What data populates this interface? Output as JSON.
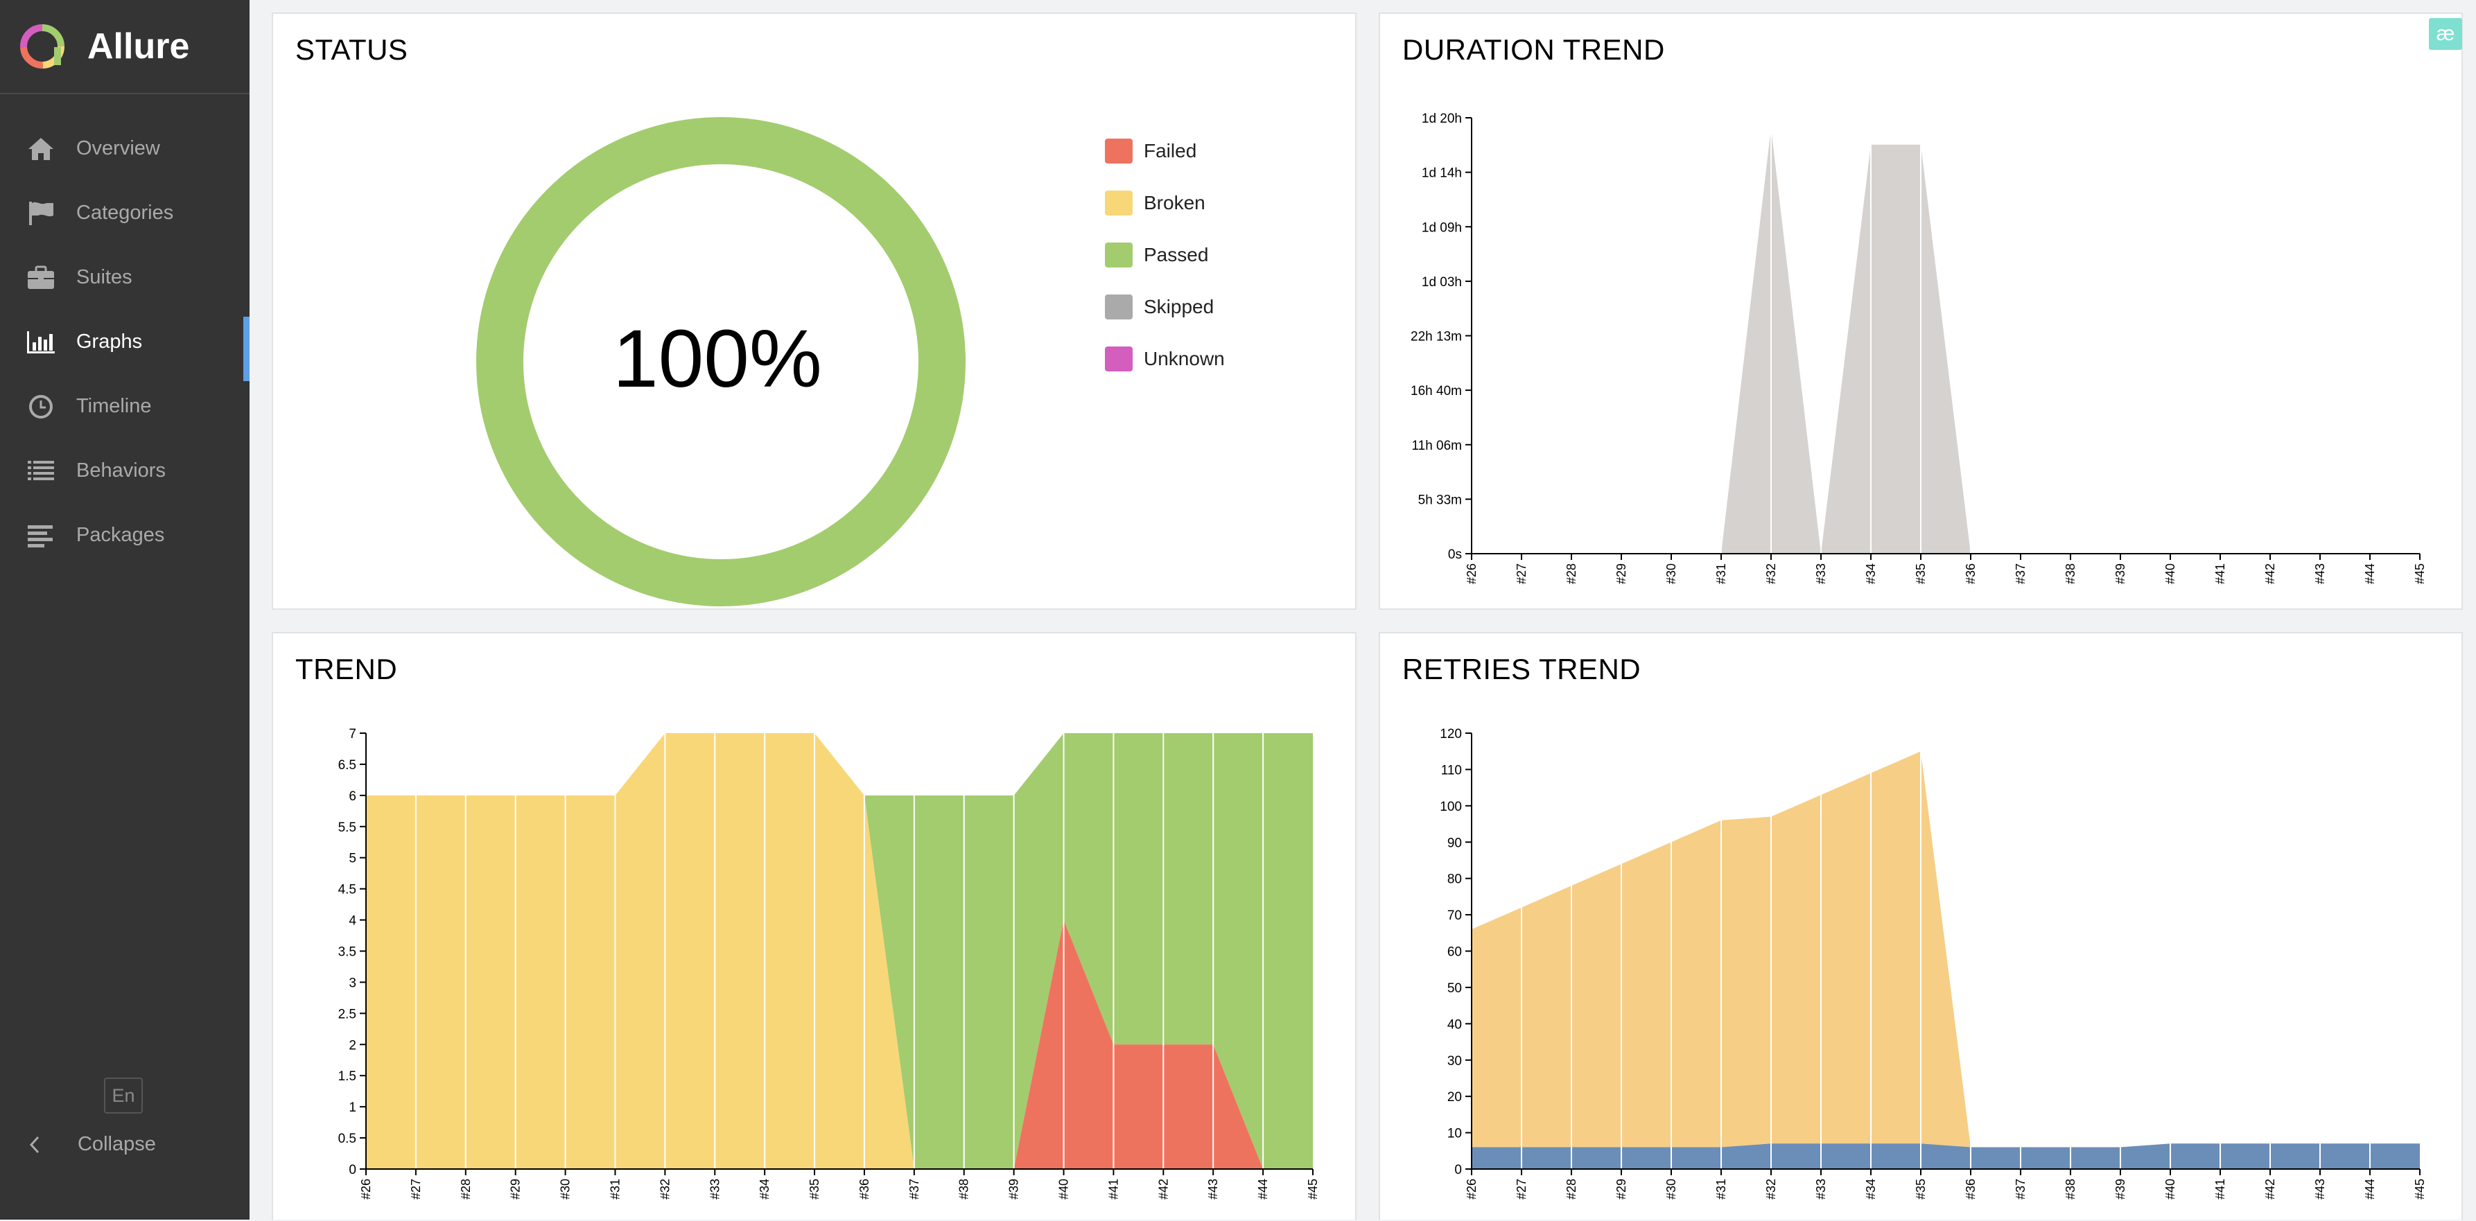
{
  "app": {
    "name": "Allure"
  },
  "sidebar": {
    "items": [
      {
        "label": "Overview",
        "icon": "home-icon"
      },
      {
        "label": "Categories",
        "icon": "flag-icon"
      },
      {
        "label": "Suites",
        "icon": "briefcase-icon"
      },
      {
        "label": "Graphs",
        "icon": "bar-chart-icon"
      },
      {
        "label": "Timeline",
        "icon": "clock-icon"
      },
      {
        "label": "Behaviors",
        "icon": "list-icon"
      },
      {
        "label": "Packages",
        "icon": "align-left-icon"
      }
    ],
    "active": "Graphs",
    "language": "En",
    "collapse_label": "Collapse"
  },
  "extension_badge": "æ",
  "colors": {
    "failed": "#ee735f",
    "broken": "#f8d778",
    "passed": "#a3cc6e",
    "skipped": "#aaaaaa",
    "unknown": "#d35ebe",
    "duration": "#d6d2cf",
    "retries_total": "#f7ce86",
    "retries_base": "#6b8eb9",
    "accent": "#5c9fe8"
  },
  "panels": {
    "status": {
      "title": "STATUS",
      "percent_label": "100%"
    },
    "duration": {
      "title": "DURATION TREND"
    },
    "trend": {
      "title": "TREND"
    },
    "retries": {
      "title": "RETRIES TREND"
    }
  },
  "chart_data": [
    {
      "id": "status",
      "type": "pie",
      "title": "STATUS",
      "center_label": "100%",
      "slices": [
        {
          "name": "Failed",
          "value": 0,
          "color": "#ee735f"
        },
        {
          "name": "Broken",
          "value": 0,
          "color": "#f8d778"
        },
        {
          "name": "Passed",
          "value": 100,
          "color": "#a3cc6e"
        },
        {
          "name": "Skipped",
          "value": 0,
          "color": "#aaaaaa"
        },
        {
          "name": "Unknown",
          "value": 0,
          "color": "#d35ebe"
        }
      ],
      "legend_position": "right"
    },
    {
      "id": "duration",
      "type": "area",
      "title": "DURATION TREND",
      "categories": [
        "#26",
        "#27",
        "#28",
        "#29",
        "#30",
        "#31",
        "#32",
        "#33",
        "#34",
        "#35",
        "#36",
        "#37",
        "#38",
        "#39",
        "#40",
        "#41",
        "#42",
        "#43",
        "#44",
        "#45"
      ],
      "y_tick_labels": [
        "0s",
        "5h 33m",
        "11h 06m",
        "16h 40m",
        "22h 13m",
        "1d 03h",
        "1d 09h",
        "1d 14h",
        "1d 20h"
      ],
      "ylim_hours": [
        0,
        44.44
      ],
      "series": [
        {
          "values_hours": [
            0,
            0,
            0,
            0,
            0,
            0,
            43.4,
            0,
            41.7,
            41.7,
            0,
            0,
            0,
            0,
            0,
            0,
            0,
            0,
            0,
            0
          ],
          "color": "#d6d2cf"
        }
      ]
    },
    {
      "id": "trend",
      "type": "area",
      "title": "TREND",
      "categories": [
        "#26",
        "#27",
        "#28",
        "#29",
        "#30",
        "#31",
        "#32",
        "#33",
        "#34",
        "#35",
        "#36",
        "#37",
        "#38",
        "#39",
        "#40",
        "#41",
        "#42",
        "#43",
        "#44",
        "#45"
      ],
      "y_ticks": [
        "0",
        "0.5",
        "1",
        "1.5",
        "2",
        "2.5",
        "3",
        "3.5",
        "4",
        "4.5",
        "5",
        "5.5",
        "6",
        "6.5",
        "7"
      ],
      "ylim": [
        0,
        7
      ],
      "stacked": true,
      "series": [
        {
          "name": "Failed",
          "color": "#ee735f",
          "values": [
            0,
            0,
            0,
            0,
            0,
            0,
            0,
            0,
            0,
            0,
            0,
            0,
            0,
            0,
            4,
            2,
            2,
            2,
            0,
            0
          ]
        },
        {
          "name": "Broken",
          "color": "#f8d778",
          "values": [
            6,
            6,
            6,
            6,
            6,
            6,
            7,
            7,
            7,
            7,
            6,
            0,
            0,
            0,
            0,
            0,
            0,
            0,
            0,
            0
          ]
        },
        {
          "name": "Passed",
          "color": "#a3cc6e",
          "values": [
            0,
            0,
            0,
            0,
            0,
            0,
            0,
            0,
            0,
            0,
            0,
            6,
            6,
            6,
            3,
            5,
            5,
            5,
            7,
            7
          ]
        }
      ]
    },
    {
      "id": "retries",
      "type": "area",
      "title": "RETRIES TREND",
      "categories": [
        "#26",
        "#27",
        "#28",
        "#29",
        "#30",
        "#31",
        "#32",
        "#33",
        "#34",
        "#35",
        "#36",
        "#37",
        "#38",
        "#39",
        "#40",
        "#41",
        "#42",
        "#43",
        "#44",
        "#45"
      ],
      "y_ticks": [
        "0",
        "10",
        "20",
        "30",
        "40",
        "50",
        "60",
        "70",
        "80",
        "90",
        "100",
        "110",
        "120"
      ],
      "ylim": [
        0,
        120
      ],
      "series": [
        {
          "color": "#f7ce86",
          "values": [
            66,
            72,
            78,
            84,
            90,
            96,
            97,
            103,
            109,
            115,
            6,
            6,
            6,
            6,
            7,
            7,
            7,
            7,
            7,
            7
          ]
        },
        {
          "color": "#6b8eb9",
          "values": [
            6,
            6,
            6,
            6,
            6,
            6,
            7,
            7,
            7,
            7,
            6,
            6,
            6,
            6,
            7,
            7,
            7,
            7,
            7,
            7
          ]
        }
      ]
    }
  ]
}
